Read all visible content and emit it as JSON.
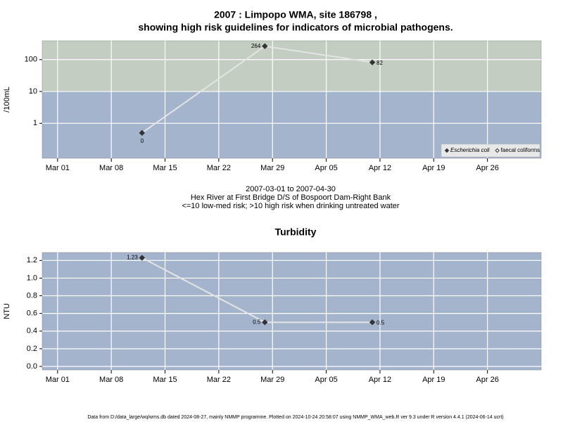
{
  "chart_data": [
    {
      "type": "line",
      "title": [
        "2007 : Limpopo WMA, site 186798 ,",
        "showing high risk guidelines for indicators of microbial pathogens."
      ],
      "ylabel": "/100mL",
      "log_y": true,
      "x": [
        "2007-03-12",
        "2007-03-28",
        "2007-04-11"
      ],
      "series": [
        {
          "name": "Escherichia coli",
          "color": "#333333",
          "marker": "filled-diamond",
          "values": [
            0.5,
            264,
            82
          ],
          "value_labels": [
            "0",
            "264",
            "82"
          ]
        },
        {
          "name": "faecal coliforms",
          "color": "#333333",
          "marker": "open-diamond",
          "values": [
            null,
            null,
            null
          ]
        }
      ],
      "line_color": "#e4e4e4",
      "threshold": 10,
      "band_colors": {
        "below": "#a3b4cc",
        "above": "#c4cdc1"
      },
      "xlim": [
        "2007-02-27",
        "2007-05-03"
      ],
      "xticks": [
        {
          "value": "2007-03-01",
          "label": "Mar 01"
        },
        {
          "value": "2007-03-08",
          "label": "Mar 08"
        },
        {
          "value": "2007-03-15",
          "label": "Mar 15"
        },
        {
          "value": "2007-03-22",
          "label": "Mar 22"
        },
        {
          "value": "2007-03-29",
          "label": "Mar 29"
        },
        {
          "value": "2007-04-05",
          "label": "Apr 05"
        },
        {
          "value": "2007-04-12",
          "label": "Apr 12"
        },
        {
          "value": "2007-04-19",
          "label": "Apr 19"
        },
        {
          "value": "2007-04-26",
          "label": "Apr 26"
        }
      ],
      "ylim": [
        0.08,
        390
      ],
      "yticks": [
        1,
        10,
        100
      ],
      "grid": true,
      "legend": "bottom-right",
      "subtitle": [
        "2007-03-01 to 2007-04-30",
        "Hex River at First Bridge D/S of Bospoort Dam-Right Bank",
        "<=10 low-med risk; >10 high risk when drinking untreated water"
      ]
    },
    {
      "type": "line",
      "title": [
        "Turbidity"
      ],
      "ylabel": "NTU",
      "log_y": false,
      "x": [
        "2007-03-12",
        "2007-03-28",
        "2007-04-11"
      ],
      "series": [
        {
          "name": "Turbidity",
          "color": "#333333",
          "marker": "filled-diamond",
          "values": [
            1.23,
            0.5,
            0.5
          ]
        }
      ],
      "line_color": "#e4e4e4",
      "band_colors": {
        "below": "#a3b4cc"
      },
      "xlim": [
        "2007-02-27",
        "2007-05-03"
      ],
      "xticks": [
        {
          "value": "2007-03-01",
          "label": "Mar 01"
        },
        {
          "value": "2007-03-08",
          "label": "Mar 08"
        },
        {
          "value": "2007-03-15",
          "label": "Mar 15"
        },
        {
          "value": "2007-03-22",
          "label": "Mar 22"
        },
        {
          "value": "2007-03-29",
          "label": "Mar 29"
        },
        {
          "value": "2007-04-05",
          "label": "Apr 05"
        },
        {
          "value": "2007-04-12",
          "label": "Apr 12"
        },
        {
          "value": "2007-04-19",
          "label": "Apr 19"
        },
        {
          "value": "2007-04-26",
          "label": "Apr 26"
        }
      ],
      "ylim": [
        -0.04,
        1.29
      ],
      "yticks": [
        {
          "value": 0,
          "label": "0.0"
        },
        0.2,
        0.4,
        0.6,
        0.8,
        {
          "value": 1,
          "label": "1.0"
        },
        1.2
      ],
      "grid": true
    }
  ],
  "footer": "Data from D:/data_large/wq/wms.db dated 2024-08-27, mainly NMMP programme. Plotted on 2024-10-24 20:58:07 using NMMP_WMA_web.R ver 9.3 under R version 4.4.1 (2024-06-14 ucrt)"
}
